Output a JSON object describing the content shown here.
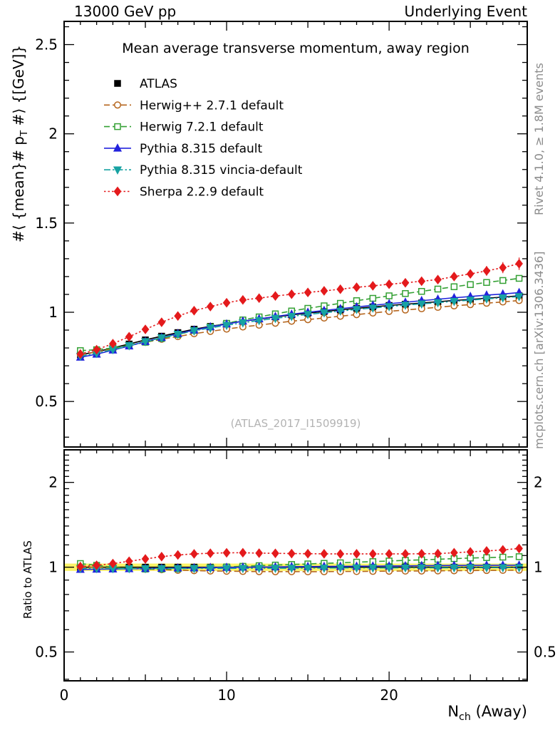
{
  "header": {
    "left": "13000 GeV pp",
    "right": "Underlying Event"
  },
  "side_notes": {
    "top": "Rivet 4.1.0, ≥ 1.8M events",
    "bottom": "mcplots.cern.ch [arXiv:1306.3436]"
  },
  "chart_data": {
    "type": "line",
    "title": "Mean average transverse momentum, away region",
    "watermark": "(ATLAS_2017_I1509919)",
    "ylabel": {
      "pre": "#⟨ {mean}# p",
      "sub": "T",
      "post": " #⟩ {[GeV]}"
    },
    "ratio_ylabel": "Ratio to ATLAS",
    "xlabel": {
      "pre": "N",
      "sub": "ch",
      "post": " (Away)"
    },
    "xlim": [
      0,
      28.5
    ],
    "main_ylim": [
      0.245,
      2.63
    ],
    "main_yticks": [
      0.5,
      1,
      1.5,
      2,
      2.5
    ],
    "main_ytick_labels": [
      "0.5",
      "1",
      "1.5",
      "2",
      "2.5"
    ],
    "xticks": [
      0,
      10,
      20
    ],
    "xtick_labels": [
      "0",
      "10",
      "20"
    ],
    "ratio_yscale": "log",
    "ratio_ylim": [
      0.395,
      2.61
    ],
    "ratio_yticks": [
      0.5,
      1,
      2
    ],
    "ratio_ytick_labels": [
      "0.5",
      "1",
      "2"
    ],
    "ratio_band": {
      "lo": 0.97,
      "hi": 1.03,
      "color": "#fbf367"
    },
    "legend_position": "top-left",
    "grid": false,
    "x": [
      1,
      2,
      3,
      4,
      5,
      6,
      7,
      8,
      9,
      10,
      11,
      12,
      13,
      14,
      15,
      16,
      17,
      18,
      19,
      20,
      21,
      22,
      23,
      24,
      25,
      26,
      27,
      28
    ],
    "series": [
      {
        "name": "ATLAS",
        "color": "#000000",
        "marker": "square",
        "fill": "filled",
        "line": "solid",
        "values": [
          0.762,
          0.778,
          0.8,
          0.822,
          0.845,
          0.866,
          0.886,
          0.905,
          0.921,
          0.936,
          0.95,
          0.962,
          0.974,
          0.985,
          0.995,
          1.004,
          1.013,
          1.022,
          1.03,
          1.038,
          1.045,
          1.052,
          1.059,
          1.066,
          1.072,
          1.079,
          1.085,
          1.092
        ]
      },
      {
        "name": "Herwig++ 2.7.1 default",
        "color": "#b5651d",
        "marker": "circle",
        "fill": "open",
        "line": "dashed",
        "values": [
          0.762,
          0.778,
          0.796,
          0.814,
          0.832,
          0.849,
          0.864,
          0.88,
          0.893,
          0.906,
          0.918,
          0.928,
          0.939,
          0.95,
          0.959,
          0.968,
          0.978,
          0.987,
          0.996,
          1.005,
          1.013,
          1.02,
          1.028,
          1.036,
          1.043,
          1.051,
          1.058,
          1.066
        ]
      },
      {
        "name": "Herwig 7.2.1 default",
        "color": "#33a033",
        "marker": "square",
        "fill": "open",
        "line": "dashed",
        "values": [
          0.785,
          0.79,
          0.8,
          0.814,
          0.832,
          0.853,
          0.875,
          0.898,
          0.918,
          0.938,
          0.957,
          0.974,
          0.991,
          1.007,
          1.022,
          1.036,
          1.05,
          1.065,
          1.078,
          1.092,
          1.105,
          1.117,
          1.13,
          1.143,
          1.155,
          1.167,
          1.178,
          1.19
        ]
      },
      {
        "name": "Pythia 8.315 default",
        "color": "#2222dd",
        "marker": "triangle-up",
        "fill": "filled",
        "line": "solid",
        "values": [
          0.748,
          0.765,
          0.788,
          0.811,
          0.836,
          0.858,
          0.88,
          0.9,
          0.918,
          0.934,
          0.95,
          0.963,
          0.976,
          0.989,
          1.0,
          1.01,
          1.02,
          1.03,
          1.039,
          1.048,
          1.056,
          1.065,
          1.073,
          1.081,
          1.088,
          1.096,
          1.102,
          1.11
        ]
      },
      {
        "name": "Pythia 8.315 vincia-default",
        "color": "#17a2a2",
        "marker": "triangle-down",
        "fill": "filled",
        "line": "dashdot",
        "values": [
          0.754,
          0.77,
          0.791,
          0.813,
          0.836,
          0.857,
          0.877,
          0.896,
          0.912,
          0.927,
          0.941,
          0.954,
          0.966,
          0.977,
          0.988,
          0.997,
          1.007,
          1.016,
          1.024,
          1.032,
          1.04,
          1.047,
          1.054,
          1.061,
          1.068,
          1.075,
          1.081,
          1.088
        ]
      },
      {
        "name": "Sherpa 2.2.9 default",
        "color": "#e41a1c",
        "marker": "diamond",
        "fill": "filled",
        "line": "dotted",
        "values": [
          0.766,
          0.79,
          0.824,
          0.863,
          0.904,
          0.944,
          0.979,
          1.009,
          1.032,
          1.053,
          1.069,
          1.079,
          1.091,
          1.101,
          1.111,
          1.12,
          1.129,
          1.14,
          1.148,
          1.157,
          1.165,
          1.174,
          1.183,
          1.2,
          1.215,
          1.232,
          1.25,
          1.272
        ]
      }
    ]
  }
}
